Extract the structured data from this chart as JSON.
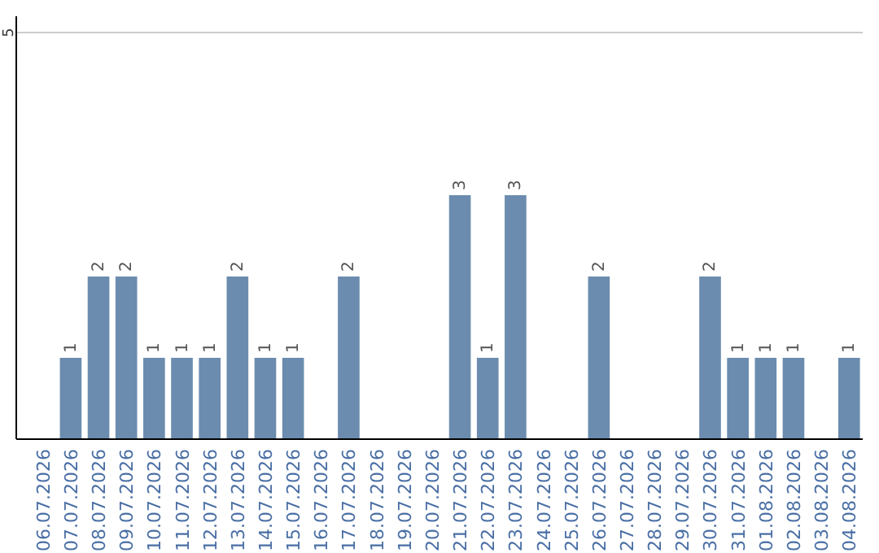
{
  "chart_data": {
    "type": "bar",
    "categories": [
      "06.07.2026",
      "07.07.2026",
      "08.07.2026",
      "09.07.2026",
      "10.07.2026",
      "11.07.2026",
      "12.07.2026",
      "13.07.2026",
      "14.07.2026",
      "15.07.2026",
      "16.07.2026",
      "17.07.2026",
      "18.07.2026",
      "19.07.2026",
      "20.07.2026",
      "21.07.2026",
      "22.07.2026",
      "23.07.2026",
      "24.07.2026",
      "25.07.2026",
      "26.07.2026",
      "27.07.2026",
      "28.07.2026",
      "29.07.2026",
      "30.07.2026",
      "31.07.2026",
      "01.08.2026",
      "02.08.2026",
      "03.08.2026",
      "04.08.2026"
    ],
    "values": [
      null,
      1,
      2,
      2,
      1,
      1,
      1,
      2,
      1,
      1,
      null,
      2,
      null,
      null,
      null,
      3,
      1,
      3,
      null,
      null,
      2,
      null,
      null,
      null,
      2,
      1,
      1,
      1,
      null,
      1
    ],
    "color": "#6b8cae",
    "ylim": [
      0,
      5
    ],
    "yticks": [
      5
    ],
    "ref_lines": [
      {
        "axis": "y",
        "value": 5,
        "color": "#cccccc"
      }
    ],
    "data_labels": true
  }
}
